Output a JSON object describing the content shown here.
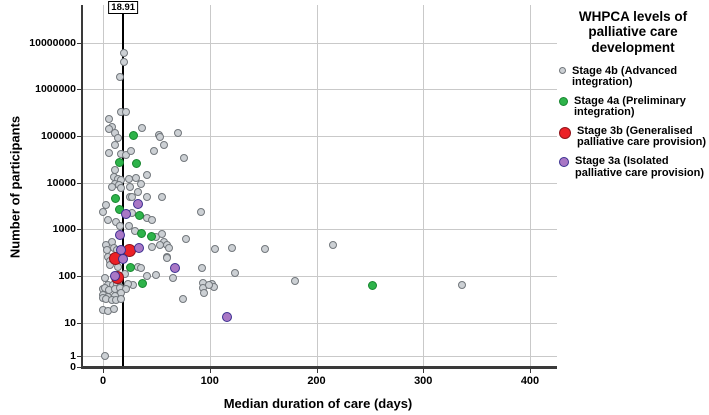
{
  "figure": {
    "x_axis_title": "Median duration of care (days)",
    "y_axis_title": "Number of participants"
  },
  "legend": {
    "title": "WHPCA levels of palliative care development",
    "position": "right"
  },
  "chart_data": {
    "type": "scatter",
    "title": "",
    "xlabel": "Median duration of care (days)",
    "ylabel": "Number of participants",
    "y_scale": "log",
    "xlim": [
      -21,
      423
    ],
    "ylim_log": [
      0,
      10000000
    ],
    "grid": true,
    "legend_position": "right",
    "reference_line": {
      "label": "18.91",
      "value": 18.91
    },
    "x_ticks": [
      {
        "label": "0",
        "value": 0
      },
      {
        "label": "100",
        "value": 100
      },
      {
        "label": "200",
        "value": 200
      },
      {
        "label": "300",
        "value": 300
      },
      {
        "label": "400",
        "value": 400
      }
    ],
    "y_ticks": [
      {
        "label": "10000000",
        "value": 10000000
      },
      {
        "label": "1000000",
        "value": 1000000
      },
      {
        "label": "100000",
        "value": 100000
      },
      {
        "label": "10000",
        "value": 10000
      },
      {
        "label": "1000",
        "value": 1000
      },
      {
        "label": "100",
        "value": 100
      },
      {
        "label": "10",
        "value": 10
      },
      {
        "label": "1",
        "value": 1
      },
      {
        "label": "0",
        "value": 0
      }
    ],
    "series": [
      {
        "name": "Stage 4b (Advanced integration)",
        "color": "#ccd0d4",
        "stroke": "#72777c",
        "marker_size": 8,
        "legend_marker_size": 7,
        "points": [
          [
            20,
            6000000
          ],
          [
            20,
            3800000
          ],
          [
            16,
            1800000
          ],
          [
            17,
            320000
          ],
          [
            22,
            320000
          ],
          [
            6,
            230000
          ],
          [
            8,
            158000
          ],
          [
            6,
            140000
          ],
          [
            11,
            117000
          ],
          [
            14,
            89000
          ],
          [
            37,
            145000
          ],
          [
            52,
            105000
          ],
          [
            70,
            115000
          ],
          [
            53,
            96000
          ],
          [
            11,
            63000
          ],
          [
            57,
            63000
          ],
          [
            6,
            44000
          ],
          [
            17,
            41000
          ],
          [
            22,
            39000
          ],
          [
            26,
            48000
          ],
          [
            48,
            48000
          ],
          [
            76,
            34000
          ],
          [
            11,
            18500
          ],
          [
            10,
            13200
          ],
          [
            14,
            12100
          ],
          [
            17,
            11200
          ],
          [
            11,
            9500
          ],
          [
            15,
            8800
          ],
          [
            8,
            8100
          ],
          [
            17,
            7700
          ],
          [
            24,
            12100
          ],
          [
            31,
            12500
          ],
          [
            36,
            9500
          ],
          [
            25,
            8100
          ],
          [
            33,
            6300
          ],
          [
            25,
            4900
          ],
          [
            41,
            14400
          ],
          [
            27,
            4800
          ],
          [
            41,
            5000
          ],
          [
            55,
            4800
          ],
          [
            3,
            3300
          ],
          [
            0,
            2400
          ],
          [
            27,
            2200
          ],
          [
            92,
            2400
          ],
          [
            41,
            1780
          ],
          [
            46,
            1580
          ],
          [
            5,
            1580
          ],
          [
            12,
            1450
          ],
          [
            16,
            1150
          ],
          [
            24,
            1200
          ],
          [
            30,
            920
          ],
          [
            50,
            700
          ],
          [
            55,
            780
          ],
          [
            57,
            540
          ],
          [
            8,
            540
          ],
          [
            3,
            460
          ],
          [
            46,
            425
          ],
          [
            60,
            460
          ],
          [
            62,
            405
          ],
          [
            78,
            620
          ],
          [
            105,
            380
          ],
          [
            121,
            390
          ],
          [
            152,
            380
          ],
          [
            215,
            460
          ],
          [
            10,
            390
          ],
          [
            4,
            360
          ],
          [
            13,
            360
          ],
          [
            53,
            460
          ],
          [
            5,
            260
          ],
          [
            7,
            210
          ],
          [
            60,
            260
          ],
          [
            60,
            240
          ],
          [
            7,
            172
          ],
          [
            14,
            158
          ],
          [
            33,
            158
          ],
          [
            36,
            150
          ],
          [
            93,
            146
          ],
          [
            124,
            114
          ],
          [
            21,
            109
          ],
          [
            2,
            92
          ],
          [
            41,
            98
          ],
          [
            50,
            107
          ],
          [
            66,
            92
          ],
          [
            5,
            64
          ],
          [
            9,
            64
          ],
          [
            13,
            66
          ],
          [
            16,
            59
          ],
          [
            28,
            64
          ],
          [
            23,
            66
          ],
          [
            94,
            72
          ],
          [
            102,
            66
          ],
          [
            104,
            59
          ],
          [
            180,
            79
          ],
          [
            336,
            63
          ],
          [
            94,
            56
          ],
          [
            99,
            64
          ],
          [
            0,
            52
          ],
          [
            2,
            55
          ],
          [
            6,
            50
          ],
          [
            11,
            53
          ],
          [
            16,
            55
          ],
          [
            22,
            52
          ],
          [
            17,
            43
          ],
          [
            95,
            43
          ],
          [
            0,
            39
          ],
          [
            5,
            36
          ],
          [
            11,
            38
          ],
          [
            0,
            33
          ],
          [
            3,
            32
          ],
          [
            8,
            31
          ],
          [
            12,
            31
          ],
          [
            17,
            32
          ],
          [
            75,
            32
          ],
          [
            0,
            19
          ],
          [
            5,
            18
          ],
          [
            10,
            20
          ],
          [
            2,
            1
          ]
        ]
      },
      {
        "name": "Stage 4a (Preliminary integration)",
        "color": "#2eb34a",
        "stroke": "#17862f",
        "marker_size": 9,
        "legend_marker_size": 9,
        "points": [
          [
            29,
            100000
          ],
          [
            15,
            27000
          ],
          [
            31,
            26000
          ],
          [
            12,
            4500
          ],
          [
            15,
            2700
          ],
          [
            34,
            2000
          ],
          [
            36,
            820
          ],
          [
            45,
            700
          ],
          [
            26,
            150
          ],
          [
            37,
            68
          ],
          [
            252,
            63
          ]
        ]
      },
      {
        "name": "Stage 3b (Generalised palliative care provision)",
        "color": "#ec2127",
        "stroke": "#91141a",
        "marker_size": 13,
        "legend_marker_size": 12,
        "points": [
          [
            25,
            350
          ],
          [
            12,
            235
          ],
          [
            14,
            92
          ]
        ]
      },
      {
        "name": "Stage 3a (Isolated palliative care provision)",
        "color": "#a977c5",
        "stroke": "#3a2f90",
        "marker_size": 10,
        "legend_marker_size": 10,
        "points": [
          [
            33,
            3500
          ],
          [
            22,
            2100
          ],
          [
            16,
            750
          ],
          [
            17,
            355
          ],
          [
            34,
            390
          ],
          [
            19,
            230
          ],
          [
            11,
            100
          ],
          [
            67,
            146
          ],
          [
            116,
            13
          ]
        ]
      }
    ]
  }
}
